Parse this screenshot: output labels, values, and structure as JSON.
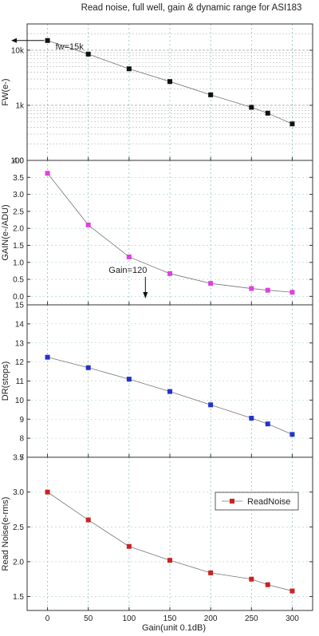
{
  "chart_data": {
    "type": "line",
    "title": "Read noise, full well, gain & dynamic range for ASI183",
    "xlabel": "Gain(unit 0.1dB)",
    "x_ticks": [
      0,
      50,
      100,
      150,
      200,
      250,
      300
    ],
    "xlim": [
      -25,
      325
    ],
    "x": [
      0,
      50,
      100,
      150,
      200,
      250,
      270,
      300
    ],
    "panels": [
      {
        "id": "fw",
        "ylabel": "FW(e-)",
        "scale": "log",
        "ylim": [
          100,
          30000
        ],
        "y_tick_labels": [
          {
            "v": 100,
            "t": "100"
          },
          {
            "v": 1000,
            "t": "1k"
          },
          {
            "v": 10000,
            "t": "10k"
          }
        ],
        "color": "#111111",
        "values": [
          15000,
          8500,
          4600,
          2700,
          1550,
          920,
          720,
          460
        ],
        "annotation": {
          "text": "fw=15k"
        }
      },
      {
        "id": "gain",
        "ylabel": "GAIN(e-/ADU)",
        "scale": "linear",
        "ylim": [
          -0.25,
          4.0
        ],
        "y_tick_labels": [
          {
            "v": 0.0,
            "t": "0.0"
          },
          {
            "v": 0.5,
            "t": "0.5"
          },
          {
            "v": 1.0,
            "t": "1.0"
          },
          {
            "v": 1.5,
            "t": "1.5"
          },
          {
            "v": 2.0,
            "t": "2.0"
          },
          {
            "v": 2.5,
            "t": "2.5"
          },
          {
            "v": 3.0,
            "t": "3.0"
          },
          {
            "v": 3.5,
            "t": "3.5"
          },
          {
            "v": 4.0,
            "t": "4.0"
          }
        ],
        "color": "#e040e0",
        "values": [
          3.62,
          2.1,
          1.16,
          0.67,
          0.38,
          0.23,
          0.18,
          0.12
        ],
        "annotation": {
          "text": "Gain=120",
          "x": 120
        }
      },
      {
        "id": "dr",
        "ylabel": "DR(stops)",
        "scale": "linear",
        "ylim": [
          7,
          15
        ],
        "y_tick_labels": [
          {
            "v": 7,
            "t": "7"
          },
          {
            "v": 8,
            "t": "8"
          },
          {
            "v": 9,
            "t": "9"
          },
          {
            "v": 10,
            "t": "10"
          },
          {
            "v": 11,
            "t": "11"
          },
          {
            "v": 12,
            "t": "12"
          },
          {
            "v": 13,
            "t": "13"
          },
          {
            "v": 14,
            "t": "14"
          },
          {
            "v": 15,
            "t": "15"
          }
        ],
        "color": "#2233cc",
        "values": [
          12.25,
          11.7,
          11.1,
          10.45,
          9.75,
          9.05,
          8.75,
          8.2
        ]
      },
      {
        "id": "rn",
        "ylabel": "Read Noise(e-rms)",
        "scale": "linear",
        "ylim": [
          1.3,
          3.5
        ],
        "y_tick_labels": [
          {
            "v": 1.5,
            "t": "1.5"
          },
          {
            "v": 2.0,
            "t": "2.0"
          },
          {
            "v": 2.5,
            "t": "2.5"
          },
          {
            "v": 3.0,
            "t": "3.0"
          },
          {
            "v": 3.5,
            "t": "3.5"
          }
        ],
        "color": "#cc2222",
        "values": [
          3.0,
          2.6,
          2.22,
          2.02,
          1.84,
          1.75,
          1.67,
          1.58
        ],
        "legend": {
          "name": "ReadNoise",
          "placement": "top-right"
        }
      }
    ]
  }
}
